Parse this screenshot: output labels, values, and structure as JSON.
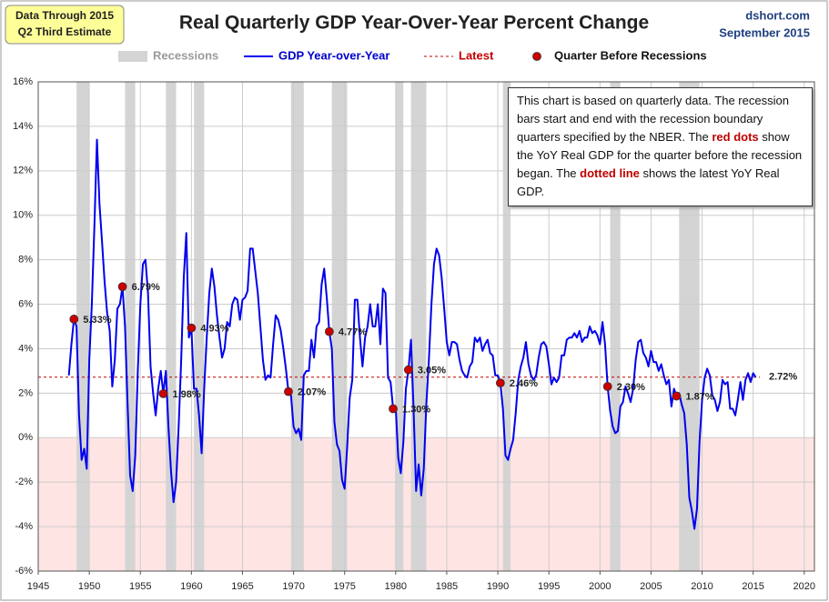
{
  "chart_data": {
    "type": "line",
    "title": "Real Quarterly GDP Year-Over-Year Percent Change",
    "badge": [
      "Data Through 2015",
      "Q2 Third Estimate"
    ],
    "source": [
      "dshort.com",
      "September 2015"
    ],
    "note": [
      "This chart is based on quarterly data. The recession bars start and end with the recession boundary quarters specified by the  NBER. The ",
      "red dots",
      " show the YoY Real GDP for the quarter  before the recession began. The ",
      "dotted line",
      " shows the latest YoY Real GDP."
    ],
    "xlim": [
      1945,
      2021
    ],
    "xticks": [
      1945,
      1950,
      1955,
      1960,
      1965,
      1970,
      1975,
      1980,
      1985,
      1990,
      1995,
      2000,
      2005,
      2010,
      2015,
      2020
    ],
    "ylim": [
      -6,
      16
    ],
    "yticks": [
      {
        "value": -6,
        "label": "-6%"
      },
      {
        "value": -4,
        "label": "-4%"
      },
      {
        "value": -2,
        "label": "-2%"
      },
      {
        "value": 0,
        "label": "0%"
      },
      {
        "value": 2,
        "label": "2%"
      },
      {
        "value": 4,
        "label": "4%"
      },
      {
        "value": 6,
        "label": "6%"
      },
      {
        "value": 8,
        "label": "8%"
      },
      {
        "value": 10,
        "label": "10%"
      },
      {
        "value": 12,
        "label": "12%"
      },
      {
        "value": 14,
        "label": "14%"
      },
      {
        "value": 16,
        "label": "16%"
      }
    ],
    "grid": true,
    "recessions": {
      "name": "Recessions",
      "color": "#d4d4d4",
      "periods": [
        [
          1948.75,
          1950.0
        ],
        [
          1953.5,
          1954.5
        ],
        [
          1957.5,
          1958.5
        ],
        [
          1960.25,
          1961.25
        ],
        [
          1969.75,
          1971.0
        ],
        [
          1973.75,
          1975.25
        ],
        [
          1980.0,
          1980.75
        ],
        [
          1981.5,
          1983.0
        ],
        [
          1990.5,
          1991.25
        ],
        [
          2001.0,
          2002.0
        ],
        [
          2007.75,
          2009.75
        ]
      ]
    },
    "series": [
      {
        "name": "GDP Year-over-Year",
        "color": "#0000ee",
        "x": [
          1948,
          1948.25,
          1948.5,
          1948.75,
          1949,
          1949.25,
          1949.5,
          1949.75,
          1950,
          1950.25,
          1950.5,
          1950.75,
          1951,
          1951.25,
          1951.5,
          1951.75,
          1952,
          1952.25,
          1952.5,
          1952.75,
          1953,
          1953.25,
          1953.5,
          1953.75,
          1954,
          1954.25,
          1954.5,
          1954.75,
          1955,
          1955.25,
          1955.5,
          1955.75,
          1956,
          1956.25,
          1956.5,
          1956.75,
          1957,
          1957.25,
          1957.5,
          1957.75,
          1958,
          1958.25,
          1958.5,
          1958.75,
          1959,
          1959.25,
          1959.5,
          1959.75,
          1960,
          1960.25,
          1960.5,
          1960.75,
          1961,
          1961.25,
          1961.5,
          1961.75,
          1962,
          1962.25,
          1962.5,
          1962.75,
          1963,
          1963.25,
          1963.5,
          1963.75,
          1964,
          1964.25,
          1964.5,
          1964.75,
          1965,
          1965.25,
          1965.5,
          1965.75,
          1966,
          1966.25,
          1966.5,
          1966.75,
          1967,
          1967.25,
          1967.5,
          1967.75,
          1968,
          1968.25,
          1968.5,
          1968.75,
          1969,
          1969.25,
          1969.5,
          1969.75,
          1970,
          1970.25,
          1970.5,
          1970.75,
          1971,
          1971.25,
          1971.5,
          1971.75,
          1972,
          1972.25,
          1972.5,
          1972.75,
          1973,
          1973.25,
          1973.5,
          1973.75,
          1974,
          1974.25,
          1974.5,
          1974.75,
          1975,
          1975.25,
          1975.5,
          1975.75,
          1976,
          1976.25,
          1976.5,
          1976.75,
          1977,
          1977.25,
          1977.5,
          1977.75,
          1978,
          1978.25,
          1978.5,
          1978.75,
          1979,
          1979.25,
          1979.5,
          1979.75,
          1980,
          1980.25,
          1980.5,
          1980.75,
          1981,
          1981.25,
          1981.5,
          1981.75,
          1982,
          1982.25,
          1982.5,
          1982.75,
          1983,
          1983.25,
          1983.5,
          1983.75,
          1984,
          1984.25,
          1984.5,
          1984.75,
          1985,
          1985.25,
          1985.5,
          1985.75,
          1986,
          1986.25,
          1986.5,
          1986.75,
          1987,
          1987.25,
          1987.5,
          1987.75,
          1988,
          1988.25,
          1988.5,
          1988.75,
          1989,
          1989.25,
          1989.5,
          1989.75,
          1990,
          1990.25,
          1990.5,
          1990.75,
          1991,
          1991.25,
          1991.5,
          1991.75,
          1992,
          1992.25,
          1992.5,
          1992.75,
          1993,
          1993.25,
          1993.5,
          1993.75,
          1994,
          1994.25,
          1994.5,
          1994.75,
          1995,
          1995.25,
          1995.5,
          1995.75,
          1996,
          1996.25,
          1996.5,
          1996.75,
          1997,
          1997.25,
          1997.5,
          1997.75,
          1998,
          1998.25,
          1998.5,
          1998.75,
          1999,
          1999.25,
          1999.5,
          1999.75,
          2000,
          2000.25,
          2000.5,
          2000.75,
          2001,
          2001.25,
          2001.5,
          2001.75,
          2002,
          2002.25,
          2002.5,
          2002.75,
          2003,
          2003.25,
          2003.5,
          2003.75,
          2004,
          2004.25,
          2004.5,
          2004.75,
          2005,
          2005.25,
          2005.5,
          2005.75,
          2006,
          2006.25,
          2006.5,
          2006.75,
          2007,
          2007.25,
          2007.5,
          2007.75,
          2008,
          2008.25,
          2008.5,
          2008.75,
          2009,
          2009.25,
          2009.5,
          2009.75,
          2010,
          2010.25,
          2010.5,
          2010.75,
          2011,
          2011.25,
          2011.5,
          2011.75,
          2012,
          2012.25,
          2012.5,
          2012.75,
          2013,
          2013.25,
          2013.5,
          2013.75,
          2014,
          2014.25,
          2014.5,
          2014.75,
          2015,
          2015.25
        ],
        "values": [
          2.8,
          4.2,
          5.33,
          5.0,
          1.0,
          -1.0,
          -0.5,
          -1.4,
          3.5,
          6.0,
          9.5,
          13.4,
          10.5,
          8.8,
          7.0,
          5.6,
          4.8,
          2.3,
          3.5,
          5.8,
          6.0,
          6.79,
          5.0,
          1.5,
          -1.7,
          -2.4,
          -0.8,
          3.0,
          6.0,
          7.8,
          8.0,
          6.5,
          3.2,
          2.0,
          1.0,
          2.2,
          3.0,
          1.98,
          3.0,
          0.5,
          -1.5,
          -2.9,
          -2.0,
          0.5,
          3.5,
          7.2,
          9.2,
          4.5,
          4.93,
          2.2,
          2.2,
          1.0,
          -0.7,
          2.2,
          4.5,
          6.5,
          7.6,
          6.8,
          5.5,
          4.5,
          3.6,
          4.0,
          5.2,
          5.0,
          6.0,
          6.3,
          6.2,
          5.3,
          6.2,
          6.3,
          6.6,
          8.5,
          8.5,
          7.5,
          6.5,
          5.0,
          3.5,
          2.6,
          2.8,
          2.7,
          4.2,
          5.5,
          5.3,
          4.8,
          4.0,
          3.1,
          2.07,
          1.9,
          0.5,
          0.2,
          0.4,
          -0.1,
          2.8,
          3.0,
          3.0,
          4.4,
          3.6,
          5.0,
          5.2,
          6.9,
          7.6,
          6.3,
          4.77,
          4.0,
          0.7,
          -0.3,
          -0.6,
          -1.9,
          -2.3,
          -0.4,
          1.8,
          2.6,
          6.2,
          6.2,
          4.5,
          3.2,
          4.5,
          5.0,
          6.0,
          5.0,
          5.0,
          6.0,
          4.2,
          6.7,
          6.5,
          2.7,
          2.5,
          1.3,
          1.4,
          -0.9,
          -1.6,
          -0.2,
          2.2,
          3.05,
          4.4,
          1.3,
          -2.4,
          -1.2,
          -2.6,
          -1.4,
          1.5,
          3.5,
          6.0,
          7.8,
          8.5,
          8.2,
          7.2,
          5.8,
          4.3,
          3.7,
          4.3,
          4.3,
          4.2,
          3.5,
          3.0,
          2.8,
          2.7,
          3.2,
          3.4,
          4.5,
          4.3,
          4.5,
          3.9,
          4.2,
          4.4,
          3.8,
          3.7,
          2.8,
          2.8,
          2.46,
          1.3,
          -0.8,
          -1.0,
          -0.5,
          -0.1,
          1.1,
          2.6,
          3.2,
          3.6,
          4.3,
          3.3,
          2.8,
          2.6,
          2.8,
          3.6,
          4.2,
          4.3,
          4.1,
          3.3,
          2.4,
          2.7,
          2.5,
          2.7,
          3.7,
          3.7,
          4.4,
          4.5,
          4.5,
          4.7,
          4.5,
          4.8,
          4.3,
          4.5,
          4.5,
          5.0,
          4.7,
          4.8,
          4.6,
          4.2,
          5.2,
          4.2,
          2.3,
          1.2,
          0.5,
          0.2,
          0.3,
          1.4,
          1.6,
          2.3,
          2.0,
          1.6,
          2.2,
          3.5,
          4.3,
          4.4,
          3.8,
          3.6,
          3.2,
          3.9,
          3.4,
          3.4,
          3.0,
          3.3,
          2.8,
          2.4,
          2.6,
          1.4,
          2.2,
          1.87,
          2.0,
          1.5,
          1.1,
          -0.3,
          -2.7,
          -3.3,
          -4.1,
          -3.2,
          -0.2,
          1.7,
          2.7,
          3.1,
          2.8,
          1.9,
          1.7,
          1.2,
          1.6,
          2.6,
          2.4,
          2.5,
          1.3,
          1.3,
          1.0,
          1.7,
          2.5,
          1.7,
          2.6,
          2.9,
          2.5,
          2.9,
          2.72
        ]
      },
      {
        "name": "Quarter Before Recessions",
        "color": "#cc0000",
        "x": [
          1948.5,
          1953.25,
          1957.25,
          1960.0,
          1969.5,
          1973.5,
          1979.75,
          1981.25,
          1990.25,
          2000.75,
          2007.5
        ],
        "values": [
          5.33,
          6.79,
          1.98,
          4.93,
          2.07,
          4.77,
          1.3,
          3.05,
          2.46,
          2.3,
          1.87
        ],
        "value_labels": [
          "5.33%",
          "6.79%",
          "1.98%",
          "4.93%",
          "2.07%",
          "4.77%",
          "1.30%",
          "3.05%",
          "2.46%",
          "2.30%",
          "1.87%"
        ]
      }
    ],
    "latest": {
      "name": "Latest",
      "value": 2.72,
      "label": "2.72%",
      "color": "#c00000"
    }
  }
}
